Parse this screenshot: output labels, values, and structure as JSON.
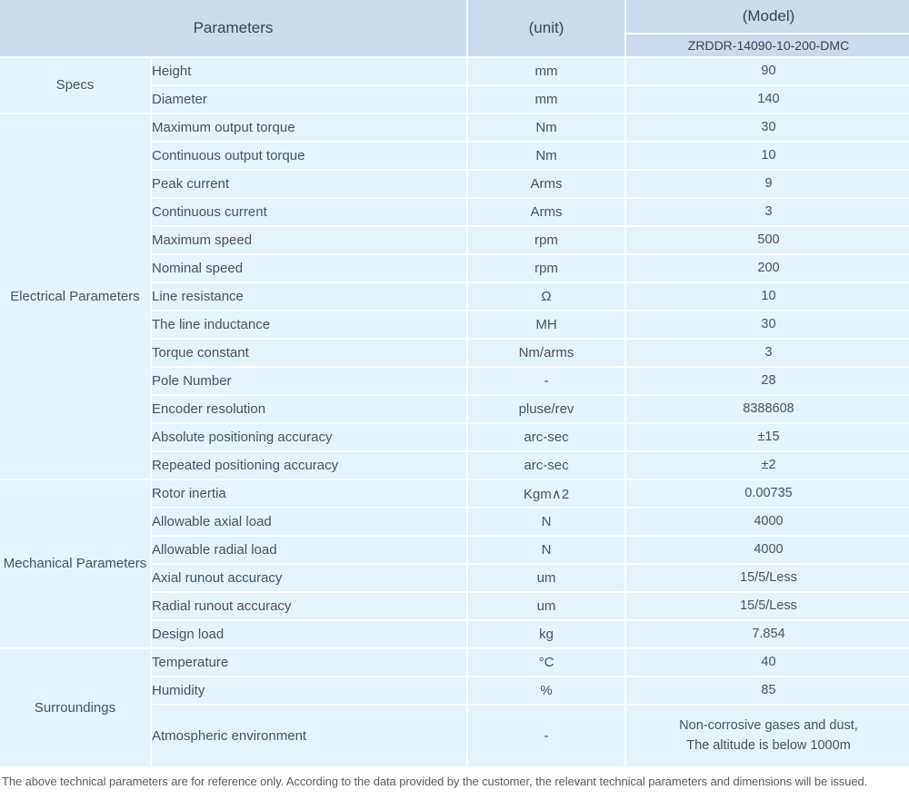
{
  "header": {
    "parameters_label": "Parameters",
    "unit_label": "(unit)",
    "model_label": "(Model)",
    "model_value": "ZRDDR-14090-10-200-DMC"
  },
  "colors": {
    "header_bg": "#cdd9ec",
    "cell_bg": "#e4f3fc",
    "grid": "#ffffff",
    "text": "#4d535c"
  },
  "sections": [
    {
      "category": "Specs",
      "rows": [
        {
          "param": "Height",
          "unit": "mm",
          "value": "90"
        },
        {
          "param": "Diameter",
          "unit": "mm",
          "value": "140"
        }
      ]
    },
    {
      "category": "Electrical Parameters",
      "rows": [
        {
          "param": "Maximum output torque",
          "unit": "Nm",
          "value": "30"
        },
        {
          "param": "Continuous output torque",
          "unit": "Nm",
          "value": "10"
        },
        {
          "param": "Peak current",
          "unit": "Arms",
          "value": "9"
        },
        {
          "param": "Continuous current",
          "unit": "Arms",
          "value": "3"
        },
        {
          "param": "Maximum speed",
          "unit": "rpm",
          "value": "500"
        },
        {
          "param": "Nominal speed",
          "unit": "rpm",
          "value": "200"
        },
        {
          "param": "Line resistance",
          "unit": "Ω",
          "value": "10"
        },
        {
          "param": "The line inductance",
          "unit": "MH",
          "value": "30"
        },
        {
          "param": "Torque constant",
          "unit": "Nm/arms",
          "value": "3"
        },
        {
          "param": "Pole Number",
          "unit": "-",
          "value": "28"
        },
        {
          "param": "Encoder resolution",
          "unit": "pluse/rev",
          "value": "8388608"
        },
        {
          "param": "Absolute positioning accuracy",
          "unit": "arc-sec",
          "value": "±15"
        },
        {
          "param": "Repeated positioning accuracy",
          "unit": "arc-sec",
          "value": "±2"
        }
      ]
    },
    {
      "category": "Mechanical Parameters",
      "rows": [
        {
          "param": "Rotor inertia",
          "unit": "Kgm∧2",
          "value": "0.00735"
        },
        {
          "param": "Allowable axial load",
          "unit": "N",
          "value": "4000"
        },
        {
          "param": "Allowable radial load",
          "unit": "N",
          "value": "4000"
        },
        {
          "param": "Axial runout accuracy",
          "unit": "um",
          "value": "15/5/Less"
        },
        {
          "param": "Radial runout accuracy",
          "unit": "um",
          "value": "15/5/Less"
        },
        {
          "param": "Design load",
          "unit": "kg",
          "value": "7.854"
        }
      ]
    },
    {
      "category": "Surroundings",
      "rows": [
        {
          "param": "Temperature",
          "unit": "°C",
          "value": "40"
        },
        {
          "param": "Humidity",
          "unit": "%",
          "value": "85"
        },
        {
          "param": "Atmospheric environment",
          "unit": "-",
          "value": "Non-corrosive gases and dust,\nThe altitude is below 1000m"
        }
      ]
    }
  ],
  "footer_note": "The above technical parameters are for reference only. According to the data provided by the customer, the relevant technical parameters and dimensions will be issued."
}
